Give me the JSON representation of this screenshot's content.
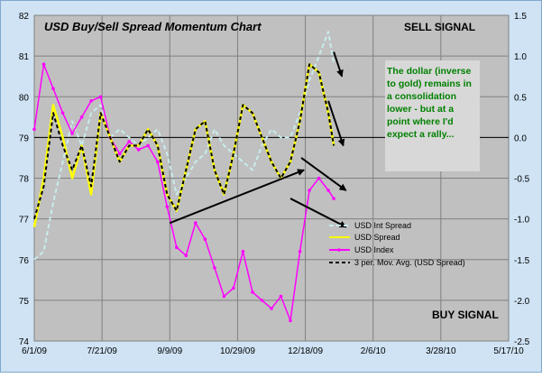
{
  "chart_data": {
    "type": "line",
    "title": "USD Buy/Sell Spread Momentum Chart",
    "x_ticks": [
      "6/1/09",
      "7/21/09",
      "9/9/09",
      "10/29/09",
      "12/18/09",
      "2/6/10",
      "3/28/10",
      "5/17/10"
    ],
    "y_left_ticks": [
      "74",
      "75",
      "76",
      "77",
      "78",
      "79",
      "80",
      "81",
      "82"
    ],
    "y_right_ticks": [
      "-2.5",
      "-2.0",
      "-1.5",
      "-1.0",
      "-0.5",
      "0.0",
      "0.5",
      "1.0",
      "1.5"
    ],
    "ylim_left": [
      74,
      82
    ],
    "ylim_right": [
      -2.5,
      1.5
    ],
    "x_range": [
      "6/1/09",
      "5/17/10"
    ],
    "grid": true,
    "legend_position": "lower-right",
    "annotations": {
      "sell_signal": "SELL SIGNAL",
      "buy_signal": "BUY SIGNAL",
      "note": [
        "The dollar (inverse",
        "to gold) remains in",
        "a consolidation",
        "lower - but at a",
        "point where I'd",
        "expect a rally..."
      ]
    },
    "colors": {
      "int_spread": "#c8ecec",
      "spread": "#ffff00",
      "index": "#ff00ff",
      "mov_avg": "#000000",
      "note_text": "#008000",
      "plot_bg": "#c0c0c0"
    },
    "series": [
      {
        "name": "USD Int Spread",
        "axis": "right",
        "x": [
          "2009-06-01",
          "2009-06-08",
          "2009-06-15",
          "2009-06-22",
          "2009-06-29",
          "2009-07-06",
          "2009-07-13",
          "2009-07-20",
          "2009-07-27",
          "2009-08-03",
          "2009-08-10",
          "2009-08-17",
          "2009-08-24",
          "2009-08-31",
          "2009-09-07",
          "2009-09-14",
          "2009-09-21",
          "2009-09-28",
          "2009-10-05",
          "2009-10-12",
          "2009-10-19",
          "2009-10-26",
          "2009-11-02",
          "2009-11-09",
          "2009-11-16",
          "2009-11-23",
          "2009-11-30",
          "2009-12-07",
          "2009-12-14",
          "2009-12-21",
          "2009-12-28",
          "2010-01-04",
          "2010-01-08"
        ],
        "values": [
          -1.5,
          -1.4,
          -0.8,
          -0.3,
          0.2,
          -0.1,
          0.3,
          0.4,
          0.0,
          0.1,
          0.0,
          -0.1,
          0.0,
          0.1,
          -0.2,
          -0.7,
          -0.5,
          -0.3,
          -0.2,
          0.1,
          -0.1,
          -0.2,
          -0.3,
          -0.4,
          -0.1,
          0.1,
          0.0,
          0.0,
          0.3,
          0.7,
          1.0,
          1.3,
          0.9
        ]
      },
      {
        "name": "USD Spread",
        "axis": "right",
        "x": [
          "2009-06-01",
          "2009-06-08",
          "2009-06-15",
          "2009-06-22",
          "2009-06-29",
          "2009-07-06",
          "2009-07-13",
          "2009-07-20",
          "2009-07-27",
          "2009-08-03",
          "2009-08-10",
          "2009-08-17",
          "2009-08-24",
          "2009-08-31",
          "2009-09-07",
          "2009-09-14",
          "2009-09-21",
          "2009-09-28",
          "2009-10-05",
          "2009-10-12",
          "2009-10-19",
          "2009-10-26",
          "2009-11-02",
          "2009-11-09",
          "2009-11-16",
          "2009-11-23",
          "2009-11-30",
          "2009-12-07",
          "2009-12-14",
          "2009-12-21",
          "2009-12-28",
          "2010-01-04",
          "2010-01-08"
        ],
        "values": [
          -1.1,
          -0.5,
          0.4,
          0.0,
          -0.5,
          -0.1,
          -0.7,
          0.3,
          0.0,
          -0.3,
          -0.1,
          -0.1,
          0.1,
          -0.1,
          -0.7,
          -0.9,
          -0.4,
          0.1,
          0.2,
          -0.4,
          -0.7,
          -0.2,
          0.4,
          0.3,
          0.0,
          -0.3,
          -0.5,
          -0.3,
          0.2,
          0.9,
          0.8,
          0.3,
          -0.1
        ]
      },
      {
        "name": "USD Index",
        "axis": "left",
        "x": [
          "2009-06-01",
          "2009-06-08",
          "2009-06-15",
          "2009-06-22",
          "2009-06-29",
          "2009-07-06",
          "2009-07-13",
          "2009-07-20",
          "2009-07-27",
          "2009-08-03",
          "2009-08-10",
          "2009-08-17",
          "2009-08-24",
          "2009-08-31",
          "2009-09-07",
          "2009-09-14",
          "2009-09-21",
          "2009-09-28",
          "2009-10-05",
          "2009-10-12",
          "2009-10-19",
          "2009-10-26",
          "2009-11-02",
          "2009-11-09",
          "2009-11-16",
          "2009-11-23",
          "2009-11-30",
          "2009-12-07",
          "2009-12-14",
          "2009-12-21",
          "2009-12-28",
          "2010-01-04",
          "2010-01-08"
        ],
        "values": [
          79.2,
          80.8,
          80.2,
          79.6,
          79.1,
          79.5,
          79.9,
          80.0,
          79.0,
          78.6,
          78.9,
          78.7,
          78.8,
          78.4,
          77.3,
          76.3,
          76.1,
          76.9,
          76.5,
          75.8,
          75.1,
          75.3,
          76.2,
          75.2,
          75.0,
          74.8,
          75.1,
          74.5,
          76.2,
          77.7,
          78.0,
          77.7,
          77.5
        ]
      },
      {
        "name": "3 per. Mov. Avg. (USD Spread)",
        "axis": "right",
        "x": [
          "2009-06-01",
          "2009-06-08",
          "2009-06-15",
          "2009-06-22",
          "2009-06-29",
          "2009-07-06",
          "2009-07-13",
          "2009-07-20",
          "2009-07-27",
          "2009-08-03",
          "2009-08-10",
          "2009-08-17",
          "2009-08-24",
          "2009-08-31",
          "2009-09-07",
          "2009-09-14",
          "2009-09-21",
          "2009-09-28",
          "2009-10-05",
          "2009-10-12",
          "2009-10-19",
          "2009-10-26",
          "2009-11-02",
          "2009-11-09",
          "2009-11-16",
          "2009-11-23",
          "2009-11-30",
          "2009-12-07",
          "2009-12-14",
          "2009-12-21",
          "2009-12-28",
          "2010-01-04",
          "2010-01-08"
        ],
        "values": [
          -1.0,
          -0.6,
          0.3,
          -0.1,
          -0.4,
          -0.1,
          -0.6,
          0.3,
          0.0,
          -0.3,
          -0.1,
          -0.1,
          0.1,
          -0.1,
          -0.7,
          -0.9,
          -0.4,
          0.1,
          0.2,
          -0.4,
          -0.7,
          -0.2,
          0.4,
          0.3,
          0.0,
          -0.3,
          -0.5,
          -0.3,
          0.2,
          0.9,
          0.8,
          0.3,
          -0.1
        ]
      }
    ]
  }
}
